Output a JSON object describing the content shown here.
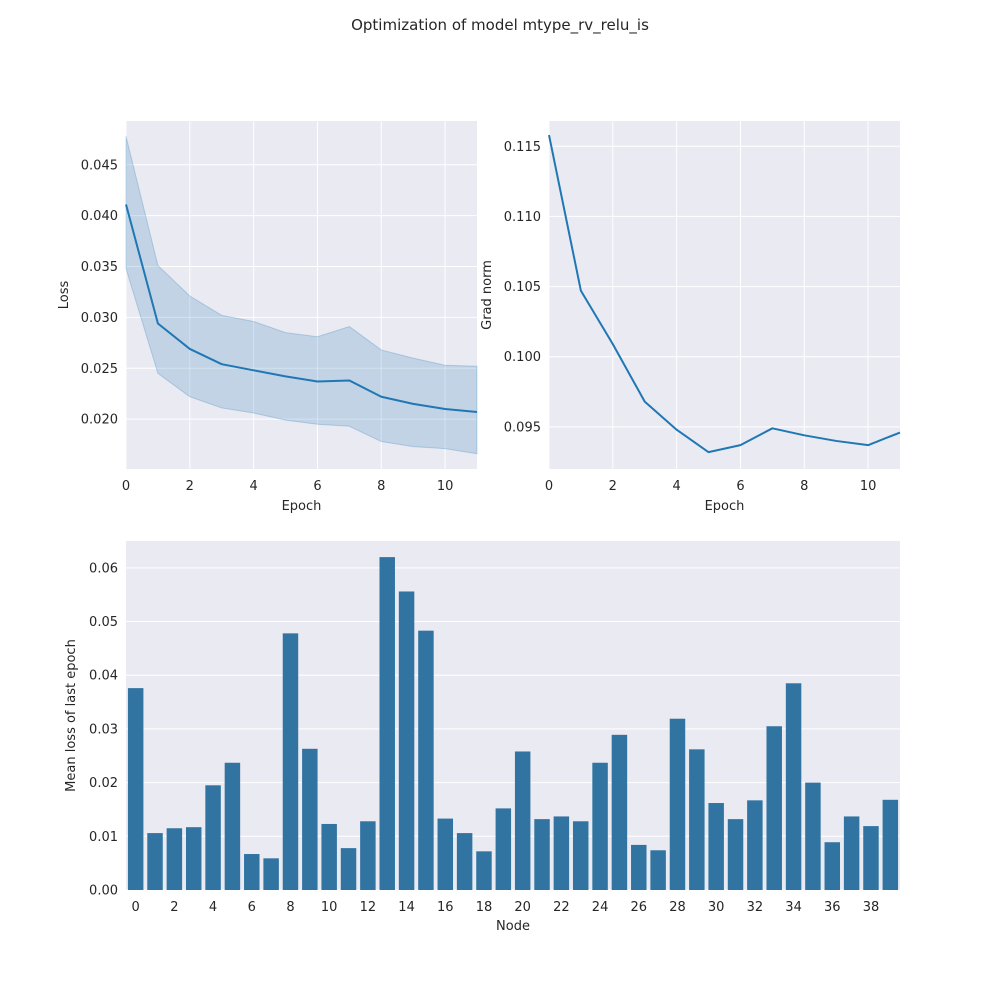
{
  "figure": {
    "title": "Optimization of model mtype_rv_relu_is"
  },
  "colors": {
    "background": "#eaeaf2",
    "grid": "#ffffff",
    "line": "#1f77b4",
    "band": "#1f77b4",
    "bar": "#3274a1",
    "text": "#262626"
  },
  "chart_data": [
    {
      "type": "line",
      "title": "",
      "xlabel": "Epoch",
      "ylabel": "Loss",
      "xlim": [
        0,
        11
      ],
      "ylim": [
        0.0151,
        0.0493
      ],
      "xticks": [
        "0",
        "2",
        "4",
        "6",
        "8",
        "10"
      ],
      "xtick_values": [
        0,
        2,
        4,
        6,
        8,
        10
      ],
      "yticks": [
        "0.020",
        "0.025",
        "0.030",
        "0.035",
        "0.040",
        "0.045"
      ],
      "ytick_values": [
        0.02,
        0.025,
        0.03,
        0.035,
        0.04,
        0.045
      ],
      "grid": true,
      "x": [
        0,
        1,
        2,
        3,
        4,
        5,
        6,
        7,
        8,
        9,
        10,
        11
      ],
      "series": [
        {
          "values": [
            0.0411,
            0.0294,
            0.0269,
            0.0254,
            0.0248,
            0.0242,
            0.0237,
            0.0238,
            0.0222,
            0.0215,
            0.021,
            0.0207
          ],
          "ci_lower": [
            0.0348,
            0.0245,
            0.0222,
            0.0211,
            0.0206,
            0.0199,
            0.0195,
            0.0193,
            0.0178,
            0.0173,
            0.0171,
            0.0166
          ],
          "ci_upper": [
            0.0478,
            0.0351,
            0.0321,
            0.0302,
            0.0296,
            0.0285,
            0.0281,
            0.0291,
            0.0268,
            0.026,
            0.0253,
            0.0252
          ]
        }
      ]
    },
    {
      "type": "line",
      "title": "",
      "xlabel": "Epoch",
      "ylabel": "Grad norm",
      "xlim": [
        0,
        11
      ],
      "ylim": [
        0.092,
        0.1168
      ],
      "xticks": [
        "0",
        "2",
        "4",
        "6",
        "8",
        "10"
      ],
      "xtick_values": [
        0,
        2,
        4,
        6,
        8,
        10
      ],
      "yticks": [
        "0.095",
        "0.100",
        "0.105",
        "0.110",
        "0.115"
      ],
      "ytick_values": [
        0.095,
        0.1,
        0.105,
        0.11,
        0.115
      ],
      "grid": true,
      "x": [
        0,
        1,
        2,
        3,
        4,
        5,
        6,
        7,
        8,
        9,
        10,
        11
      ],
      "series": [
        {
          "values": [
            0.1158,
            0.1047,
            0.1009,
            0.0968,
            0.0948,
            0.0932,
            0.0937,
            0.0949,
            0.0944,
            0.094,
            0.0937,
            0.0946
          ]
        }
      ]
    },
    {
      "type": "bar",
      "title": "",
      "xlabel": "Node",
      "ylabel": "Mean loss of last epoch",
      "ylim": [
        0,
        0.065
      ],
      "xticks": [
        "0",
        "2",
        "4",
        "6",
        "8",
        "10",
        "12",
        "14",
        "16",
        "18",
        "20",
        "22",
        "24",
        "26",
        "28",
        "30",
        "32",
        "34",
        "36",
        "38"
      ],
      "xtick_values": [
        0,
        2,
        4,
        6,
        8,
        10,
        12,
        14,
        16,
        18,
        20,
        22,
        24,
        26,
        28,
        30,
        32,
        34,
        36,
        38
      ],
      "yticks": [
        "0.00",
        "0.01",
        "0.02",
        "0.03",
        "0.04",
        "0.05",
        "0.06"
      ],
      "ytick_values": [
        0.0,
        0.01,
        0.02,
        0.03,
        0.04,
        0.05,
        0.06
      ],
      "grid": true,
      "categories": [
        0,
        1,
        2,
        3,
        4,
        5,
        6,
        7,
        8,
        9,
        10,
        11,
        12,
        13,
        14,
        15,
        16,
        17,
        18,
        19,
        20,
        21,
        22,
        23,
        24,
        25,
        26,
        27,
        28,
        29,
        30,
        31,
        32,
        33,
        34,
        35,
        36,
        37,
        38,
        39
      ],
      "values": [
        0.0376,
        0.0106,
        0.0115,
        0.0117,
        0.0195,
        0.0237,
        0.0067,
        0.0059,
        0.0478,
        0.0263,
        0.0123,
        0.0078,
        0.0128,
        0.062,
        0.0556,
        0.0483,
        0.0133,
        0.0106,
        0.0072,
        0.0152,
        0.0258,
        0.0132,
        0.0137,
        0.0128,
        0.0237,
        0.0289,
        0.0084,
        0.0074,
        0.0319,
        0.0262,
        0.0162,
        0.0132,
        0.0167,
        0.0305,
        0.0385,
        0.02,
        0.0089,
        0.0137,
        0.0119,
        0.0168
      ]
    }
  ]
}
